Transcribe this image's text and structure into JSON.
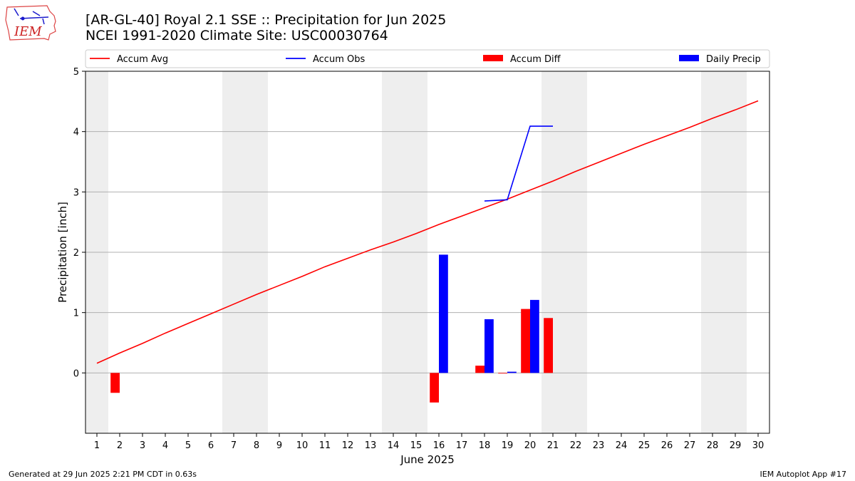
{
  "header": {
    "title_line1": "[AR-GL-40] Royal 2.1 SSE :: Precipitation for Jun 2025",
    "title_line2": "NCEI 1991-2020 Climate Site: USC00030764",
    "logo_text": "IEM"
  },
  "footer": {
    "left": "Generated at 29 Jun 2025 2:21 PM CDT in 0.63s",
    "right": "IEM Autoplot App #17"
  },
  "colors": {
    "accum_avg": "#ff0000",
    "accum_obs": "#0000ff",
    "accum_diff": "#ff0000",
    "daily_precip": "#0000ff",
    "weekend_shade": "#eeeeee",
    "grid": "#b0b0b0"
  },
  "chart_data": {
    "type": "bar",
    "title": "[AR-GL-40] Royal 2.1 SSE :: Precipitation for Jun 2025",
    "subtitle": "NCEI 1991-2020 Climate Site: USC00030764",
    "xlabel": "June 2025",
    "ylabel": "Precipitation [inch]",
    "xlim": [
      0.5,
      30.5
    ],
    "ylim": [
      -1,
      5
    ],
    "yticks": [
      0,
      1,
      2,
      3,
      4,
      5
    ],
    "xticks": [
      "1",
      "2",
      "3",
      "4",
      "5",
      "6",
      "7",
      "8",
      "9",
      "10",
      "11",
      "12",
      "13",
      "14",
      "15",
      "16",
      "17",
      "18",
      "19",
      "20",
      "21",
      "22",
      "23",
      "24",
      "25",
      "26",
      "27",
      "28",
      "29",
      "30"
    ],
    "grid": "horizontal",
    "legend_placement": "top, above plot",
    "weekend_shading": [
      [
        0.5,
        1.5
      ],
      [
        6.5,
        8.5
      ],
      [
        13.5,
        15.5
      ],
      [
        20.5,
        22.5
      ],
      [
        27.5,
        29.5
      ]
    ],
    "legend": [
      "Accum Avg",
      "Accum Obs",
      "Accum Diff",
      "Daily Precip"
    ],
    "series": [
      {
        "name": "Accum Avg",
        "kind": "line",
        "x": [
          1,
          2,
          3,
          4,
          5,
          6,
          7,
          8,
          9,
          10,
          11,
          12,
          13,
          14,
          15,
          16,
          17,
          18,
          19,
          20,
          21,
          22,
          23,
          24,
          25,
          26,
          27,
          28,
          29,
          30
        ],
        "values": [
          0.16,
          0.33,
          0.49,
          0.66,
          0.82,
          0.98,
          1.14,
          1.3,
          1.45,
          1.6,
          1.76,
          1.9,
          2.04,
          2.17,
          2.31,
          2.46,
          2.6,
          2.74,
          2.88,
          3.03,
          3.18,
          3.34,
          3.49,
          3.64,
          3.79,
          3.93,
          4.07,
          4.22,
          4.36,
          4.51
        ]
      },
      {
        "name": "Accum Obs",
        "kind": "line",
        "x": [
          18,
          19,
          20,
          21
        ],
        "values": [
          2.85,
          2.87,
          4.09,
          4.09
        ]
      },
      {
        "name": "Accum Diff",
        "kind": "bar",
        "side": "left",
        "x": [
          2,
          16,
          18,
          19,
          20,
          21
        ],
        "values": [
          -0.33,
          -0.49,
          0.12,
          -0.01,
          1.06,
          0.91
        ]
      },
      {
        "name": "Daily Precip",
        "kind": "bar",
        "side": "right",
        "x": [
          16,
          18,
          19,
          20
        ],
        "values": [
          1.96,
          0.89,
          0.02,
          1.21
        ]
      }
    ]
  }
}
